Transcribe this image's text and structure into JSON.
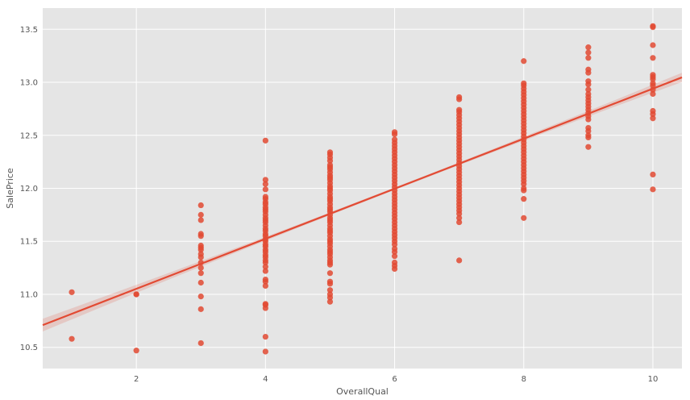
{
  "chart_data": {
    "type": "scatter",
    "xlabel": "OverallQual",
    "ylabel": "SalePrice",
    "xlim": [
      0.55,
      10.45
    ],
    "ylim": [
      10.3,
      13.7
    ],
    "xticks": [
      2,
      4,
      6,
      8,
      10
    ],
    "yticks": [
      10.5,
      11.0,
      11.5,
      12.0,
      12.5,
      13.0,
      13.5
    ],
    "ytick_labels": [
      "10.5",
      "11.0",
      "11.5",
      "12.0",
      "12.5",
      "13.0",
      "13.5"
    ],
    "grid": true,
    "background_color": "#e5e5e5",
    "point_color": "#e24a33",
    "regression": {
      "slope": 0.236,
      "intercept": 10.58,
      "ci_halfwidth_ends": 0.06,
      "ci_halfwidth_center": 0.012,
      "color": "#e24a33"
    },
    "points": [
      {
        "x": 1,
        "y": [
          11.02,
          10.58
        ]
      },
      {
        "x": 2,
        "y": [
          11.0,
          11.0,
          10.47
        ]
      },
      {
        "x": 3,
        "y": [
          11.84,
          11.75,
          11.7,
          11.57,
          11.55,
          11.46,
          11.44,
          11.42,
          11.38,
          11.35,
          11.3,
          11.25,
          11.2,
          11.11,
          10.98,
          10.86,
          10.54
        ]
      },
      {
        "x": 4,
        "y": [
          12.45,
          12.08,
          12.04,
          11.99,
          11.92,
          11.9,
          11.87,
          11.85,
          11.82,
          11.8,
          11.78,
          11.75,
          11.72,
          11.7,
          11.68,
          11.65,
          11.62,
          11.6,
          11.57,
          11.55,
          11.52,
          11.5,
          11.47,
          11.45,
          11.42,
          11.4,
          11.37,
          11.35,
          11.32,
          11.3,
          11.26,
          11.22,
          11.14,
          11.12,
          11.08,
          10.91,
          10.9,
          10.87,
          10.6,
          10.46
        ]
      },
      {
        "x": 5,
        "y": [
          12.34,
          12.32,
          12.29,
          12.26,
          12.22,
          12.2,
          12.18,
          12.15,
          12.12,
          12.1,
          12.08,
          12.05,
          12.02,
          12.0,
          11.98,
          11.95,
          11.92,
          11.9,
          11.88,
          11.85,
          11.82,
          11.8,
          11.78,
          11.75,
          11.72,
          11.7,
          11.68,
          11.65,
          11.62,
          11.6,
          11.58,
          11.55,
          11.52,
          11.5,
          11.48,
          11.45,
          11.42,
          11.4,
          11.38,
          11.35,
          11.32,
          11.3,
          11.28,
          11.2,
          11.12,
          11.1,
          11.04,
          11.0,
          10.97,
          10.93
        ]
      },
      {
        "x": 6,
        "y": [
          12.53,
          12.51,
          12.46,
          12.43,
          12.4,
          12.37,
          12.34,
          12.31,
          12.28,
          12.25,
          12.22,
          12.19,
          12.16,
          12.13,
          12.1,
          12.07,
          12.04,
          12.01,
          11.98,
          11.95,
          11.92,
          11.89,
          11.86,
          11.83,
          11.8,
          11.77,
          11.74,
          11.71,
          11.68,
          11.65,
          11.62,
          11.59,
          11.56,
          11.53,
          11.5,
          11.47,
          11.43,
          11.4,
          11.36,
          11.3,
          11.27,
          11.24
        ]
      },
      {
        "x": 7,
        "y": [
          12.86,
          12.84,
          12.74,
          12.72,
          12.69,
          12.66,
          12.63,
          12.6,
          12.57,
          12.54,
          12.51,
          12.48,
          12.45,
          12.42,
          12.39,
          12.36,
          12.33,
          12.3,
          12.27,
          12.24,
          12.21,
          12.18,
          12.15,
          12.12,
          12.09,
          12.06,
          12.03,
          12.0,
          11.97,
          11.94,
          11.91,
          11.88,
          11.85,
          11.82,
          11.79,
          11.76,
          11.72,
          11.68,
          11.32
        ]
      },
      {
        "x": 8,
        "y": [
          13.2,
          12.99,
          12.97,
          12.94,
          12.91,
          12.88,
          12.85,
          12.82,
          12.79,
          12.76,
          12.73,
          12.7,
          12.67,
          12.64,
          12.61,
          12.58,
          12.55,
          12.52,
          12.49,
          12.46,
          12.43,
          12.4,
          12.37,
          12.34,
          12.31,
          12.28,
          12.25,
          12.22,
          12.19,
          12.16,
          12.13,
          12.1,
          12.07,
          12.04,
          12.0,
          11.98,
          11.9,
          11.72
        ]
      },
      {
        "x": 9,
        "y": [
          13.33,
          13.28,
          13.23,
          13.12,
          13.09,
          13.01,
          12.98,
          12.93,
          12.89,
          12.86,
          12.83,
          12.8,
          12.77,
          12.74,
          12.71,
          12.68,
          12.65,
          12.57,
          12.54,
          12.5,
          12.48,
          12.39
        ]
      },
      {
        "x": 10,
        "y": [
          13.53,
          13.52,
          13.35,
          13.23,
          13.07,
          13.05,
          13.03,
          12.99,
          12.97,
          12.93,
          12.89,
          12.73,
          12.7,
          12.66,
          12.13,
          11.99
        ]
      }
    ]
  }
}
